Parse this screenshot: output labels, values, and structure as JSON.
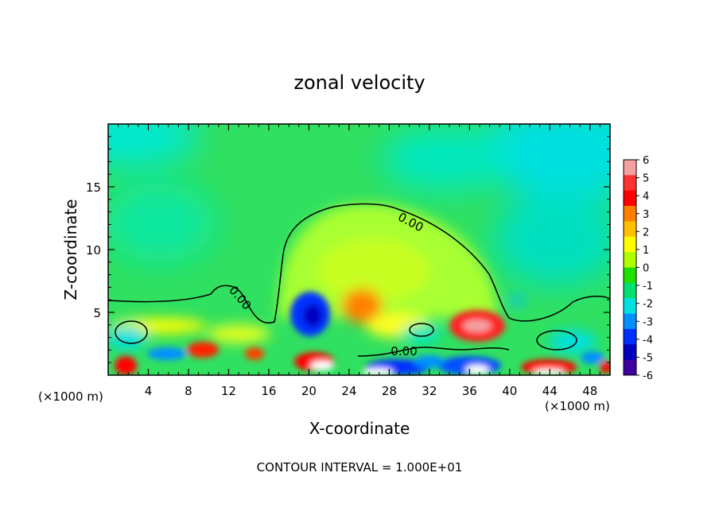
{
  "chart_data": {
    "type": "heatmap",
    "title": "zonal velocity",
    "xlabel": "X-coordinate",
    "ylabel": "Z-coordinate",
    "x_unit_left": "(×1000 m)",
    "x_unit_right": "(×1000 m)",
    "footer": "CONTOUR INTERVAL = 1.000E+01",
    "xlim": [
      0,
      50
    ],
    "ylim": [
      0,
      20
    ],
    "x_ticks": [
      4,
      8,
      12,
      16,
      20,
      24,
      28,
      32,
      36,
      40,
      44,
      48
    ],
    "y_ticks": [
      5,
      10,
      15
    ],
    "contour_labels": [
      "0.00",
      "0.00",
      "0.00"
    ],
    "colorbar": {
      "min": -6,
      "max": 6,
      "ticks": [
        "6",
        "5",
        "4",
        "3",
        "2",
        "1",
        "0",
        "-1",
        "-2",
        "-3",
        "-4",
        "-5",
        "-6"
      ],
      "colors": [
        "#f4a0a0",
        "#ff3030",
        "#ff0000",
        "#ff8000",
        "#ffc000",
        "#ffff00",
        "#b0ff00",
        "#20e000",
        "#00e070",
        "#00e0e0",
        "#0090ff",
        "#0030ff",
        "#0000c0",
        "#4000a0"
      ]
    },
    "field_colors": {
      "background": "#30e060",
      "upper_cyan": "#00e8d0",
      "dome": "#a8ff30",
      "near_zero": "#30e060"
    }
  }
}
